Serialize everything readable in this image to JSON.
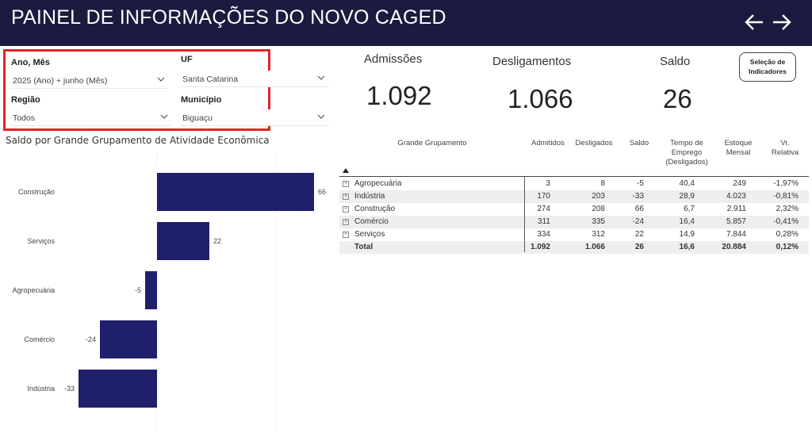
{
  "header": {
    "title": "PAINEL DE INFORMAÇÕES DO NOVO CAGED"
  },
  "filters": {
    "ano_mes": {
      "label": "Ano, Mês",
      "value": "2025 (Ano) + junho (Mês)"
    },
    "uf": {
      "label": "UF",
      "value": "Santa Catarina"
    },
    "regiao": {
      "label": "Região",
      "value": "Todos"
    },
    "municipio": {
      "label": "Município",
      "value": "Biguaçu"
    }
  },
  "kpis": {
    "admissoes": {
      "label": "Admissões",
      "value": "1.092"
    },
    "desligamentos": {
      "label": "Desligamentos",
      "value": "1.066"
    },
    "saldo": {
      "label": "Saldo",
      "value": "26"
    }
  },
  "selection_button": {
    "line1": "Seleção de",
    "line2": "Indicadores"
  },
  "chart_title": "Saldo por Grande Grupamento de Atividade Econômica",
  "chart_data": {
    "type": "bar",
    "orientation": "horizontal",
    "title": "Saldo por Grande Grupamento de Atividade Econômica",
    "categories": [
      "Construção",
      "Serviços",
      "Agropecuária",
      "Comércio",
      "Indústria"
    ],
    "values": [
      66,
      22,
      -5,
      -24,
      -33
    ],
    "xlim": [
      -33,
      66
    ],
    "bar_color": "#1f1f6b",
    "grid": true
  },
  "table": {
    "headers": {
      "group": "Grande Grupamento",
      "admitidos": "Admitidos",
      "desligados": "Desligados",
      "saldo": "Saldo",
      "tempo1": "Tempo de",
      "tempo2": "Emprego",
      "tempo3": "(Desligados)",
      "estoque1": "Estoque",
      "estoque2": "Mensal",
      "vr1": "Vr.",
      "vr2": "Relativa"
    },
    "rows": [
      {
        "name": "Agropecuária",
        "admitidos": "3",
        "desligados": "8",
        "saldo": "-5",
        "tempo": "40,4",
        "estoque": "249",
        "vr": "-1,97%"
      },
      {
        "name": "Indústria",
        "admitidos": "170",
        "desligados": "203",
        "saldo": "-33",
        "tempo": "28,9",
        "estoque": "4.023",
        "vr": "-0,81%"
      },
      {
        "name": "Construção",
        "admitidos": "274",
        "desligados": "208",
        "saldo": "66",
        "tempo": "6,7",
        "estoque": "2.911",
        "vr": "2,32%"
      },
      {
        "name": "Comércio",
        "admitidos": "311",
        "desligados": "335",
        "saldo": "-24",
        "tempo": "16,4",
        "estoque": "5.857",
        "vr": "-0,41%"
      },
      {
        "name": "Serviços",
        "admitidos": "334",
        "desligados": "312",
        "saldo": "22",
        "tempo": "14,9",
        "estoque": "7.844",
        "vr": "0,28%"
      }
    ],
    "total": {
      "name": "Total",
      "admitidos": "1.092",
      "desligados": "1.066",
      "saldo": "26",
      "tempo": "16,6",
      "estoque": "20.884",
      "vr": "0,12%"
    }
  }
}
